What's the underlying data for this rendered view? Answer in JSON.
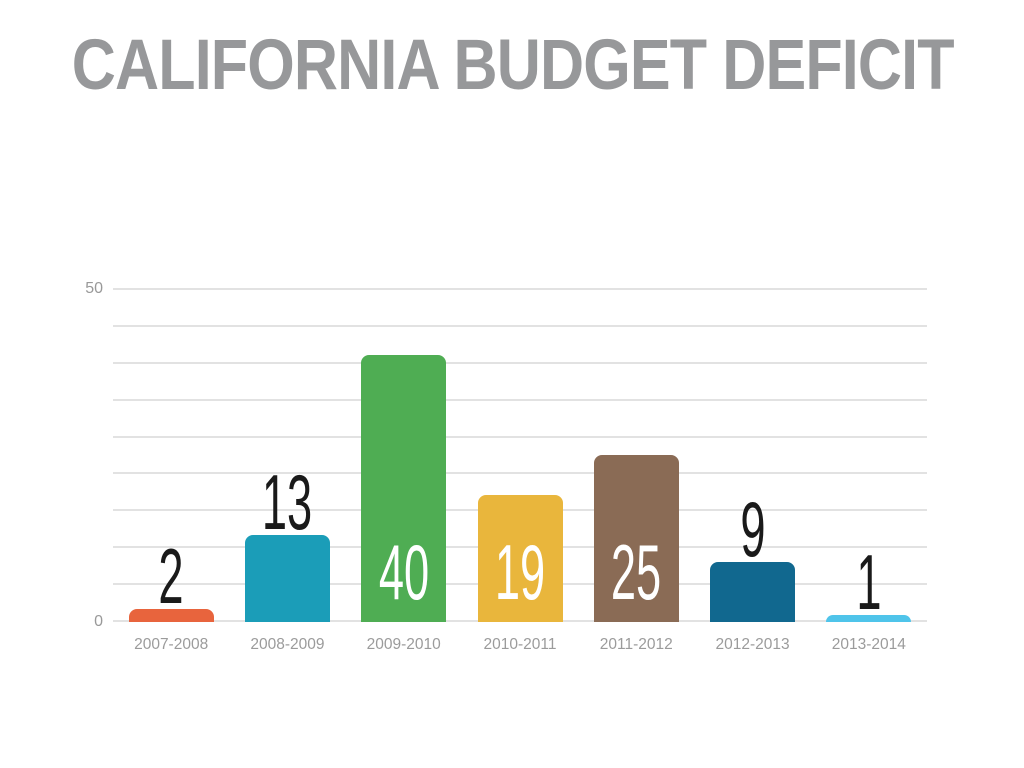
{
  "slide": {
    "background_color": "#ffffff"
  },
  "chart_data": {
    "type": "bar",
    "title": "CALIFORNIA BUDGET DEFICIT",
    "title_color": "#97989a",
    "xlabel": "",
    "ylabel": "",
    "categories": [
      "2007-2008",
      "2008-2009",
      "2009-2010",
      "2010-2011",
      "2011-2012",
      "2012-2013",
      "2013-2014"
    ],
    "values": [
      2,
      13,
      40,
      19,
      25,
      9,
      1
    ],
    "bar_colors": [
      "#e8643d",
      "#1b9db8",
      "#4fad53",
      "#e9b63c",
      "#8a6b55",
      "#11688f",
      "#4fc4ea"
    ],
    "value_label_positions": [
      "above",
      "above",
      "inside",
      "inside",
      "inside",
      "above",
      "above"
    ],
    "value_label_color_above": "#1a1a1a",
    "value_label_color_inside": "#ffffff",
    "category_label_color": "#9b9b9b",
    "y_axis": {
      "min": 0,
      "max": 50,
      "top_label": "50",
      "bottom_label": "0",
      "tick_color": "#999999"
    },
    "gridlines": {
      "count": 10,
      "color": "#e2e2e2",
      "visible": true
    },
    "legend": "none"
  }
}
